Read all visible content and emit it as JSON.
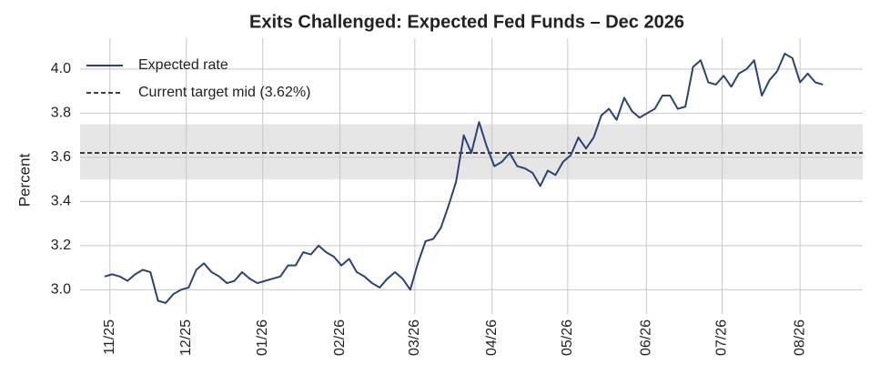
{
  "chart_data": {
    "type": "line",
    "title": "Exits Challenged: Expected Fed Funds – Dec 2026",
    "y_label": "Percent",
    "series": [
      {
        "name": "Expected rate",
        "color": "#2b4378",
        "values": [
          3.06,
          3.07,
          3.06,
          3.04,
          3.07,
          3.09,
          3.08,
          2.95,
          2.94,
          2.98,
          3.0,
          3.01,
          3.09,
          3.12,
          3.08,
          3.06,
          3.03,
          3.04,
          3.08,
          3.05,
          3.03,
          3.04,
          3.05,
          3.06,
          3.11,
          3.11,
          3.17,
          3.16,
          3.2,
          3.17,
          3.15,
          3.11,
          3.14,
          3.08,
          3.06,
          3.03,
          3.01,
          3.05,
          3.08,
          3.05,
          3.0,
          3.12,
          3.22,
          3.23,
          3.28,
          3.38,
          3.49,
          3.7,
          3.62,
          3.76,
          3.65,
          3.56,
          3.58,
          3.62,
          3.56,
          3.55,
          3.53,
          3.47,
          3.54,
          3.52,
          3.58,
          3.61,
          3.69,
          3.64,
          3.69,
          3.79,
          3.82,
          3.77,
          3.87,
          3.81,
          3.78,
          3.8,
          3.82,
          3.88,
          3.88,
          3.82,
          3.83,
          4.01,
          4.04,
          3.94,
          3.93,
          3.97,
          3.92,
          3.98,
          4.0,
          4.04,
          3.88,
          3.95,
          3.99,
          4.07,
          4.05,
          3.94,
          3.98,
          3.94,
          3.93
        ]
      }
    ],
    "reference_line": {
      "name": "Current target mid (3.62%)",
      "value": 3.62,
      "color": "#000000"
    },
    "shaded_range": {
      "from": 3.5,
      "to": 3.75,
      "color": "#e6e6e6"
    },
    "xlim": [
      -3.2,
      99.2
    ],
    "xticks": [
      {
        "value": 0.7,
        "label": "11/25"
      },
      {
        "value": 10.7,
        "label": "12/25"
      },
      {
        "value": 20.7,
        "label": "01/26"
      },
      {
        "value": 30.8,
        "label": "02/26"
      },
      {
        "value": 40.6,
        "label": "03/26"
      },
      {
        "value": 50.7,
        "label": "04/26"
      },
      {
        "value": 60.6,
        "label": "05/26"
      },
      {
        "value": 70.9,
        "label": "06/26"
      },
      {
        "value": 80.8,
        "label": "07/26"
      },
      {
        "value": 91.0,
        "label": "08/26"
      }
    ],
    "ylim": [
      2.89,
      4.14
    ],
    "yticks": [
      {
        "value": 3,
        "label": "3.0"
      },
      3.2,
      3.4,
      3.6,
      3.8,
      {
        "value": 4,
        "label": "4.0"
      }
    ],
    "grid": true,
    "legend": "upper left"
  }
}
